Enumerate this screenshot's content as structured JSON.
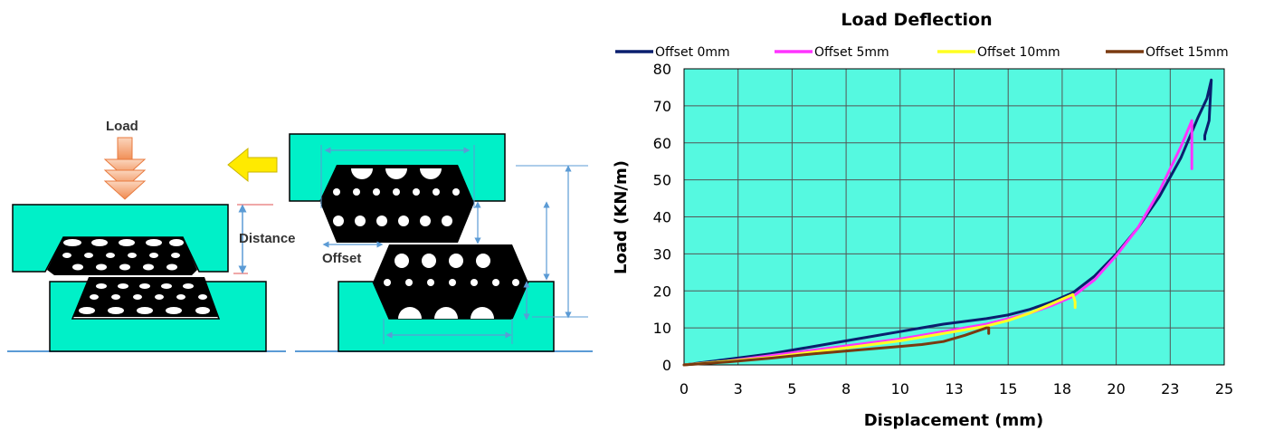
{
  "diagram": {
    "load_label": "Load",
    "distance_label": "Distance",
    "offset_label": "Offset",
    "colors": {
      "plate": "#00f0c8",
      "rubber": "#000000",
      "hole": "#ffffff",
      "arrow_load": "#f7a06a",
      "arrow_move": "#ffea00",
      "dimension": "#5b9bd5"
    }
  },
  "chart_data": {
    "type": "line",
    "title": "Load Deflection",
    "xlabel": "Displacement (mm)",
    "ylabel": "Load (KN/m)",
    "xlim": [
      0,
      25
    ],
    "ylim": [
      0,
      80
    ],
    "x_ticks": [
      "0",
      "3",
      "5",
      "8",
      "10",
      "13",
      "15",
      "18",
      "20",
      "23",
      "25"
    ],
    "y_ticks": [
      "0",
      "10",
      "20",
      "30",
      "40",
      "50",
      "60",
      "70",
      "80"
    ],
    "grid": true,
    "plot_background": "#55f9e0",
    "legend_position": "top",
    "series": [
      {
        "name": "Offset 0mm",
        "color": "#0a1f6e",
        "x": [
          0,
          2,
          4,
          6,
          8,
          10,
          12,
          14,
          15,
          16,
          17,
          18,
          19,
          20,
          21,
          22,
          23,
          23.8,
          24.2,
          24.4,
          24.3,
          24.1,
          24.1
        ],
        "y": [
          0,
          1.5,
          3,
          5,
          7,
          9,
          11,
          12.5,
          13.5,
          15,
          17,
          19.5,
          24,
          30,
          37,
          45.5,
          56,
          67,
          72,
          77,
          66,
          62,
          61
        ]
      },
      {
        "name": "Offset 5mm",
        "color": "#ff33ff",
        "x": [
          0,
          2,
          4,
          6,
          8,
          10,
          12,
          14,
          15,
          16,
          17,
          18,
          19,
          20,
          21,
          22,
          23,
          23.5,
          23.5
        ],
        "y": [
          0,
          1,
          2.5,
          4,
          5.5,
          7,
          9,
          11,
          12.5,
          14,
          16,
          18.5,
          23,
          29.5,
          37,
          47,
          59,
          66,
          53
        ]
      },
      {
        "name": "Offset 10mm",
        "color": "#ffff22",
        "x": [
          0,
          2,
          4,
          6,
          8,
          10,
          12,
          14,
          15,
          16,
          17,
          18,
          18.1,
          18.1
        ],
        "y": [
          0,
          1,
          2,
          3.5,
          5,
          6.5,
          8.5,
          10.5,
          12,
          14,
          16.5,
          19,
          17,
          15.5
        ]
      },
      {
        "name": "Offset 15mm",
        "color": "#7a3a10",
        "x": [
          0,
          2,
          4,
          6,
          8,
          10,
          11,
          12,
          13,
          14,
          14.1,
          14.1
        ],
        "y": [
          0,
          0.8,
          1.8,
          3,
          4,
          5,
          5.5,
          6.3,
          8,
          10,
          10,
          8.5
        ]
      }
    ]
  }
}
